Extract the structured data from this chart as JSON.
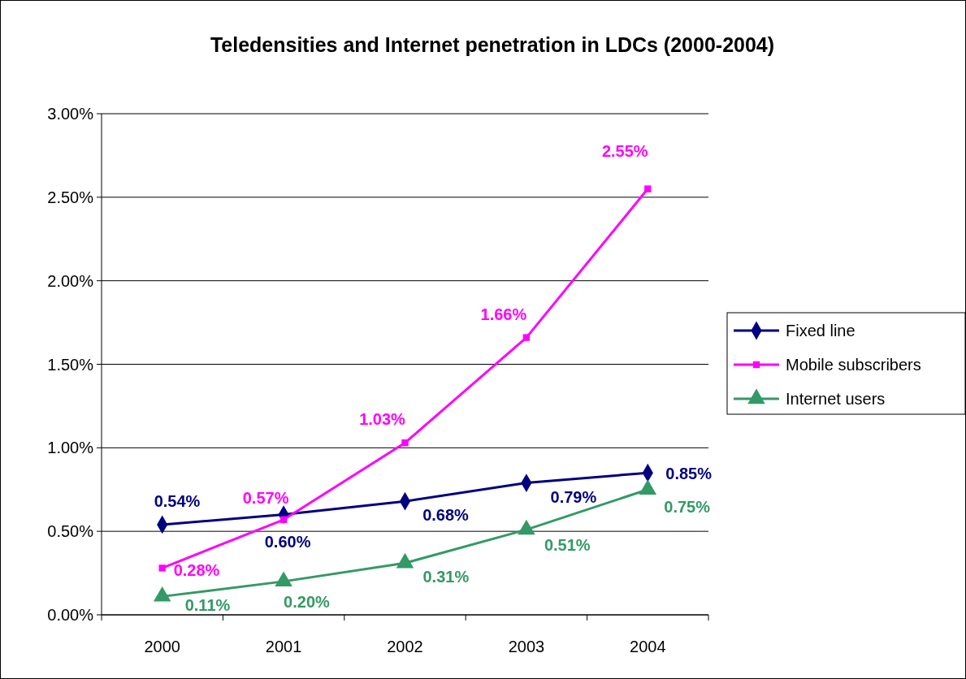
{
  "chart_data": {
    "type": "line",
    "title": "Teledensities and Internet penetration in LDCs (2000-2004)",
    "categories": [
      "2000",
      "2001",
      "2002",
      "2003",
      "2004"
    ],
    "series": [
      {
        "name": "Fixed line",
        "color": "#000080",
        "marker": "diamond",
        "values": [
          0.54,
          0.6,
          0.68,
          0.79,
          0.85
        ],
        "value_labels": [
          "0.54%",
          "0.60%",
          "0.68%",
          "0.79%",
          "0.85%"
        ]
      },
      {
        "name": "Mobile subscribers",
        "color": "#ff00ff",
        "marker": "square",
        "values": [
          0.28,
          0.57,
          1.03,
          1.66,
          2.55
        ],
        "value_labels": [
          "0.28%",
          "0.57%",
          "1.03%",
          "1.66%",
          "2.55%"
        ]
      },
      {
        "name": "Internet users",
        "color": "#339966",
        "marker": "triangle",
        "values": [
          0.11,
          0.2,
          0.31,
          0.51,
          0.75
        ],
        "value_labels": [
          "0.11%",
          "0.20%",
          "0.31%",
          "0.51%",
          "0.75%"
        ]
      }
    ],
    "ylim": [
      0,
      3
    ],
    "yticks": [
      {
        "value": 0,
        "label": "0.00%"
      },
      {
        "value": 0.5,
        "label": "0.50%"
      },
      {
        "value": 1,
        "label": "1.00%"
      },
      {
        "value": 1.5,
        "label": "1.50%"
      },
      {
        "value": 2,
        "label": "2.00%"
      },
      {
        "value": 2.5,
        "label": "2.50%"
      },
      {
        "value": 3,
        "label": "3.00%"
      }
    ],
    "grid": "y",
    "legend": "right",
    "line_style": "solid"
  }
}
